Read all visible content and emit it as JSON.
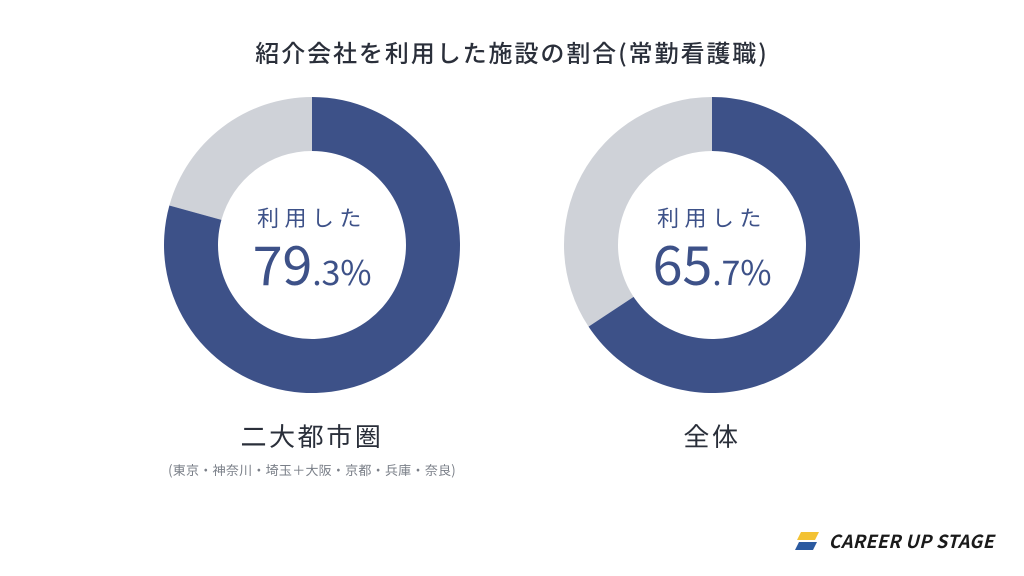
{
  "title": "紹介会社を利用した施設の割合(常勤看護職)",
  "colors": {
    "primary": "#3d5188",
    "track": "#cfd2d8",
    "text_dark": "#2a2f3a",
    "text_muted": "#7a7f88",
    "background": "#ffffff",
    "logo_text": "#1a1a1a",
    "logo_yellow": "#f3c233",
    "logo_blue": "#2b5aa0"
  },
  "donut_geometry": {
    "size": 300,
    "outer_radius": 148,
    "inner_radius": 94,
    "start_angle_deg": 0
  },
  "charts": [
    {
      "id": "metro",
      "center_label": "利用した",
      "value": 79.3,
      "value_big": "79",
      "value_small": ".3%",
      "caption": "二大都市圏",
      "subcaption": "(東京・神奈川・埼玉＋大阪・京都・兵庫・奈良)"
    },
    {
      "id": "overall",
      "center_label": "利用した",
      "value": 65.7,
      "value_big": "65",
      "value_small": ".7%",
      "caption": "全体",
      "subcaption": ""
    }
  ],
  "logo": {
    "text": "CAREER UP STAGE"
  }
}
